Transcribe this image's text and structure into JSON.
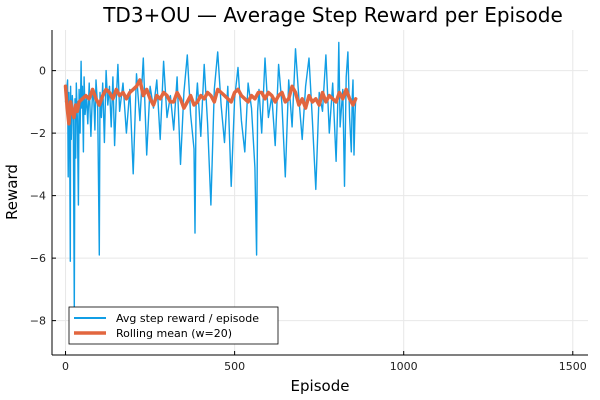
{
  "chart_data": {
    "type": "line",
    "title": "TD3+OU — Average Step Reward per Episode",
    "xlabel": "Episode",
    "ylabel": "Reward",
    "xlim": [
      -40,
      1545
    ],
    "ylim": [
      -9.1,
      1.3
    ],
    "xticks": [
      0,
      500,
      1000,
      1500
    ],
    "yticks": [
      0,
      -2,
      -4,
      -6,
      -8
    ],
    "grid": true,
    "legend_position": "bottom-left",
    "colors": {
      "raw": "#119ee5",
      "rolling": "#e2663f"
    },
    "series": [
      {
        "name": "Avg step reward / episode",
        "sampled": true,
        "x": [
          0,
          6,
          8,
          10,
          12,
          14,
          15,
          17,
          20,
          23,
          26,
          28,
          30,
          32,
          35,
          38,
          40,
          43,
          46,
          48,
          50,
          53,
          55,
          58,
          62,
          66,
          70,
          75,
          80,
          84,
          87,
          90,
          95,
          100,
          102,
          106,
          110,
          115,
          120,
          125,
          130,
          135,
          140,
          145,
          150,
          155,
          160,
          170,
          180,
          190,
          200,
          210,
          220,
          230,
          240,
          250,
          260,
          270,
          280,
          290,
          300,
          310,
          320,
          330,
          340,
          350,
          360,
          370,
          380,
          383,
          386,
          390,
          400,
          410,
          420,
          430,
          440,
          450,
          460,
          470,
          480,
          490,
          500,
          510,
          520,
          530,
          540,
          550,
          560,
          565,
          568,
          572,
          580,
          590,
          600,
          610,
          620,
          630,
          640,
          650,
          660,
          670,
          680,
          690,
          700,
          710,
          720,
          730,
          740,
          750,
          760,
          770,
          780,
          790,
          800,
          805,
          808,
          812,
          820,
          825,
          830,
          835,
          840,
          845,
          848,
          850,
          853,
          856,
          858
        ],
        "y": [
          -1.0,
          -0.3,
          -3.4,
          -0.7,
          -1.8,
          -6.1,
          -0.5,
          -2.2,
          -0.8,
          -1.5,
          -7.7,
          -0.9,
          -2.8,
          -0.4,
          -1.6,
          -4.3,
          -0.6,
          -2.0,
          0.3,
          -1.2,
          -0.5,
          -2.6,
          -0.2,
          -1.4,
          -0.8,
          -1.7,
          -0.4,
          -2.1,
          -0.6,
          -1.0,
          -1.9,
          -0.3,
          -1.2,
          -5.9,
          -0.7,
          -1.5,
          -0.4,
          -2.3,
          0.0,
          -1.1,
          -0.5,
          -1.8,
          -0.2,
          -2.4,
          -0.9,
          0.2,
          -1.3,
          -0.4,
          -2.0,
          -0.6,
          -3.3,
          -0.1,
          -1.6,
          0.4,
          -2.7,
          -0.5,
          -1.2,
          -0.3,
          -2.2,
          0.3,
          -1.5,
          -0.8,
          -1.9,
          -0.2,
          -3.0,
          -0.7,
          0.5,
          -1.4,
          -2.5,
          -5.2,
          -1.0,
          -0.4,
          -2.1,
          0.2,
          -1.7,
          -4.3,
          -0.6,
          0.6,
          -1.1,
          -2.3,
          -0.5,
          -3.7,
          -0.9,
          0.1,
          -1.6,
          -2.6,
          -0.4,
          -1.2,
          -3.1,
          -5.9,
          -1.3,
          -0.6,
          -2.0,
          0.4,
          -1.5,
          -0.8,
          -2.4,
          0.2,
          -1.1,
          -3.4,
          -0.3,
          -1.8,
          0.7,
          -0.9,
          -2.2,
          -0.5,
          0.4,
          -1.6,
          -3.8,
          -0.7,
          -1.3,
          0.5,
          -2.0,
          -0.4,
          -2.9,
          -1.0,
          0.9,
          -1.8,
          -0.6,
          -3.7,
          -0.2,
          0.6,
          -1.5,
          -2.6,
          -0.8,
          -0.3,
          -2.7,
          -1.4,
          -0.9
        ]
      },
      {
        "name": "Rolling mean (w=20)",
        "x": [
          0,
          5,
          10,
          15,
          20,
          25,
          30,
          35,
          40,
          50,
          60,
          70,
          80,
          90,
          100,
          110,
          120,
          130,
          140,
          150,
          160,
          170,
          180,
          190,
          200,
          210,
          220,
          230,
          240,
          250,
          260,
          270,
          280,
          290,
          300,
          310,
          320,
          330,
          340,
          350,
          360,
          370,
          380,
          390,
          400,
          410,
          420,
          430,
          440,
          450,
          460,
          470,
          480,
          490,
          500,
          510,
          520,
          530,
          540,
          550,
          560,
          570,
          580,
          590,
          600,
          610,
          620,
          630,
          640,
          650,
          660,
          670,
          680,
          690,
          700,
          710,
          720,
          730,
          740,
          750,
          760,
          770,
          780,
          790,
          800,
          810,
          820,
          830,
          840,
          850,
          858
        ],
        "y": [
          -0.5,
          -1.2,
          -1.7,
          -1.0,
          -1.3,
          -1.5,
          -1.1,
          -1.3,
          -1.0,
          -0.9,
          -0.8,
          -0.9,
          -0.6,
          -0.9,
          -1.1,
          -0.8,
          -0.6,
          -0.7,
          -0.9,
          -0.6,
          -0.8,
          -0.7,
          -0.9,
          -0.7,
          -0.6,
          -0.5,
          -0.3,
          -0.8,
          -0.6,
          -0.9,
          -1.1,
          -0.8,
          -0.9,
          -0.7,
          -0.8,
          -1.0,
          -1.0,
          -0.7,
          -0.9,
          -1.2,
          -1.0,
          -0.8,
          -1.1,
          -1.0,
          -0.8,
          -0.9,
          -0.7,
          -0.8,
          -1.0,
          -0.6,
          -0.7,
          -0.8,
          -0.9,
          -1.0,
          -0.7,
          -0.6,
          -0.8,
          -0.9,
          -1.0,
          -0.8,
          -0.9,
          -0.7,
          -0.7,
          -0.9,
          -0.7,
          -0.8,
          -1.0,
          -0.8,
          -0.7,
          -1.0,
          -0.9,
          -0.5,
          -0.7,
          -1.1,
          -0.9,
          -1.2,
          -0.8,
          -1.0,
          -0.9,
          -1.1,
          -0.7,
          -1.0,
          -0.8,
          -0.9,
          -1.0,
          -0.7,
          -0.9,
          -0.6,
          -0.9,
          -1.1,
          -0.9
        ]
      }
    ]
  }
}
